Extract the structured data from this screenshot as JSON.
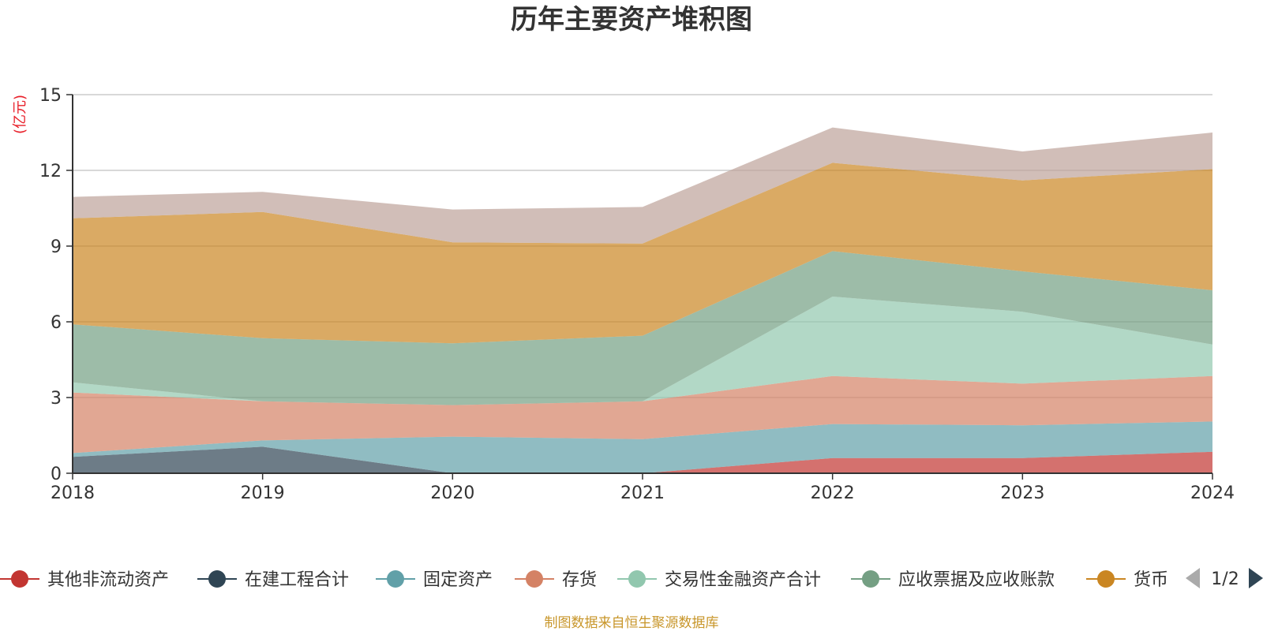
{
  "chart_data": {
    "type": "area",
    "stacked": true,
    "title": "历年主要资产堆积图",
    "unit_label": "(亿元)",
    "x": [
      "2018",
      "2019",
      "2020",
      "2021",
      "2022",
      "2023",
      "2024"
    ],
    "y_ticks": [
      "0",
      "3",
      "6",
      "9",
      "12",
      "15"
    ],
    "ylim": [
      0,
      15
    ],
    "grid": true,
    "legend_position": "bottom",
    "series": [
      {
        "name": "其他非流动资产",
        "color": "#c23531",
        "values": [
          0.0,
          0.0,
          0.0,
          0.0,
          0.6,
          0.6,
          0.85
        ]
      },
      {
        "name": "在建工程合计",
        "color": "#2f4554",
        "values": [
          0.65,
          1.05,
          0.0,
          0.0,
          0.0,
          0.0,
          0.0
        ]
      },
      {
        "name": "固定资产",
        "color": "#61a0a8",
        "values": [
          0.15,
          0.25,
          1.45,
          1.35,
          1.35,
          1.3,
          1.2
        ]
      },
      {
        "name": "存货",
        "color": "#d48265",
        "values": [
          2.4,
          1.55,
          1.25,
          1.5,
          1.9,
          1.65,
          1.8
        ]
      },
      {
        "name": "交易性金融资产合计",
        "color": "#91c7ae",
        "values": [
          0.4,
          0.0,
          0.0,
          0.0,
          3.15,
          2.85,
          1.25
        ]
      },
      {
        "name": "应收票据及应收账款",
        "color": "#749f83",
        "values": [
          2.3,
          2.5,
          2.45,
          2.6,
          1.8,
          1.6,
          2.15
        ]
      },
      {
        "name": "货币",
        "color": "#ca8622",
        "values": [
          4.2,
          5.0,
          4.0,
          3.65,
          3.5,
          3.6,
          4.8
        ]
      },
      {
        "name": "",
        "color": "#bda29a",
        "values": [
          0.85,
          0.8,
          1.3,
          1.45,
          1.4,
          1.15,
          1.45
        ]
      }
    ]
  },
  "legend": {
    "page_indicator": "1/2",
    "prev_icon": "triangle-left-icon",
    "next_icon": "triangle-right-icon"
  },
  "source_note": "制图数据来自恒生聚源数据库"
}
